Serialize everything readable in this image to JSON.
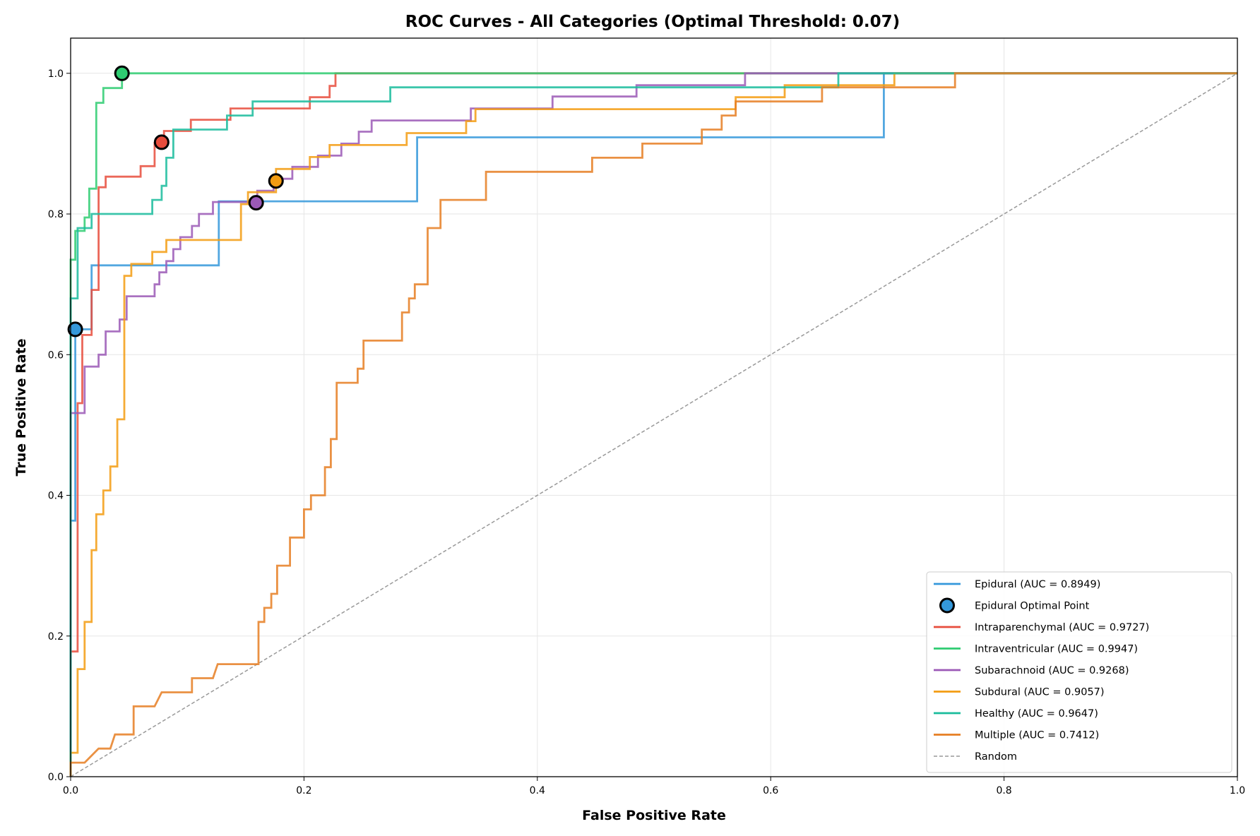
{
  "chart_data": {
    "type": "line",
    "title": "ROC Curves - All Categories (Optimal Threshold: 0.07)",
    "xlabel": "False Positive Rate",
    "ylabel": "True Positive Rate",
    "xlim": [
      0,
      1
    ],
    "ylim": [
      0,
      1.05
    ],
    "x_ticks": [
      "0.0",
      "0.2",
      "0.4",
      "0.6",
      "0.8",
      "1.0"
    ],
    "y_ticks": [
      "0.0",
      "0.2",
      "0.4",
      "0.6",
      "0.8",
      "1.0"
    ],
    "grid": true,
    "legend_position": "lower right",
    "series": [
      {
        "name": "Epidural (AUC = 0.8949)",
        "color": "#3498db",
        "points": [
          [
            0,
            0
          ],
          [
            0,
            0.364
          ],
          [
            0.004,
            0.364
          ],
          [
            0.004,
            0.636
          ],
          [
            0.018,
            0.636
          ],
          [
            0.018,
            0.727
          ],
          [
            0.127,
            0.727
          ],
          [
            0.127,
            0.818
          ],
          [
            0.297,
            0.818
          ],
          [
            0.297,
            0.909
          ],
          [
            0.697,
            0.909
          ],
          [
            0.697,
            1.0
          ],
          [
            1.0,
            1.0
          ]
        ]
      },
      {
        "name": "Intraparenchymal (AUC = 0.9727)",
        "color": "#e74c3c",
        "points": [
          [
            0,
            0
          ],
          [
            0,
            0.178
          ],
          [
            0.006,
            0.178
          ],
          [
            0.006,
            0.531
          ],
          [
            0.01,
            0.531
          ],
          [
            0.01,
            0.628
          ],
          [
            0.018,
            0.628
          ],
          [
            0.018,
            0.692
          ],
          [
            0.024,
            0.692
          ],
          [
            0.024,
            0.838
          ],
          [
            0.03,
            0.838
          ],
          [
            0.03,
            0.853
          ],
          [
            0.06,
            0.853
          ],
          [
            0.06,
            0.868
          ],
          [
            0.072,
            0.868
          ],
          [
            0.072,
            0.901
          ],
          [
            0.08,
            0.901
          ],
          [
            0.08,
            0.918
          ],
          [
            0.103,
            0.918
          ],
          [
            0.103,
            0.934
          ],
          [
            0.137,
            0.934
          ],
          [
            0.137,
            0.95
          ],
          [
            0.205,
            0.95
          ],
          [
            0.205,
            0.966
          ],
          [
            0.222,
            0.966
          ],
          [
            0.222,
            0.982
          ],
          [
            0.227,
            0.982
          ],
          [
            0.227,
            1.0
          ],
          [
            1.0,
            1.0
          ]
        ]
      },
      {
        "name": "Intraventricular (AUC = 0.9947)",
        "color": "#2ecc71",
        "points": [
          [
            0,
            0
          ],
          [
            0,
            0.735
          ],
          [
            0.004,
            0.735
          ],
          [
            0.004,
            0.776
          ],
          [
            0.012,
            0.776
          ],
          [
            0.012,
            0.795
          ],
          [
            0.016,
            0.795
          ],
          [
            0.016,
            0.836
          ],
          [
            0.022,
            0.836
          ],
          [
            0.022,
            0.958
          ],
          [
            0.028,
            0.958
          ],
          [
            0.028,
            0.979
          ],
          [
            0.044,
            0.979
          ],
          [
            0.044,
            1.0
          ],
          [
            1.0,
            1.0
          ]
        ]
      },
      {
        "name": "Subarachnoid (AUC = 0.9268)",
        "color": "#9b59b6",
        "points": [
          [
            0,
            0
          ],
          [
            0,
            0.517
          ],
          [
            0.012,
            0.517
          ],
          [
            0.012,
            0.583
          ],
          [
            0.024,
            0.583
          ],
          [
            0.024,
            0.6
          ],
          [
            0.03,
            0.6
          ],
          [
            0.03,
            0.633
          ],
          [
            0.042,
            0.633
          ],
          [
            0.042,
            0.65
          ],
          [
            0.048,
            0.65
          ],
          [
            0.048,
            0.683
          ],
          [
            0.072,
            0.683
          ],
          [
            0.072,
            0.7
          ],
          [
            0.076,
            0.7
          ],
          [
            0.076,
            0.717
          ],
          [
            0.082,
            0.717
          ],
          [
            0.082,
            0.733
          ],
          [
            0.088,
            0.733
          ],
          [
            0.088,
            0.75
          ],
          [
            0.094,
            0.75
          ],
          [
            0.094,
            0.767
          ],
          [
            0.104,
            0.767
          ],
          [
            0.104,
            0.783
          ],
          [
            0.11,
            0.783
          ],
          [
            0.11,
            0.8
          ],
          [
            0.122,
            0.8
          ],
          [
            0.122,
            0.817
          ],
          [
            0.16,
            0.817
          ],
          [
            0.16,
            0.833
          ],
          [
            0.174,
            0.833
          ],
          [
            0.174,
            0.85
          ],
          [
            0.19,
            0.85
          ],
          [
            0.19,
            0.867
          ],
          [
            0.212,
            0.867
          ],
          [
            0.212,
            0.883
          ],
          [
            0.232,
            0.883
          ],
          [
            0.232,
            0.9
          ],
          [
            0.247,
            0.9
          ],
          [
            0.247,
            0.917
          ],
          [
            0.258,
            0.917
          ],
          [
            0.258,
            0.933
          ],
          [
            0.343,
            0.933
          ],
          [
            0.343,
            0.95
          ],
          [
            0.413,
            0.95
          ],
          [
            0.413,
            0.967
          ],
          [
            0.485,
            0.967
          ],
          [
            0.485,
            0.983
          ],
          [
            0.578,
            0.983
          ],
          [
            0.578,
            1.0
          ],
          [
            1.0,
            1.0
          ]
        ]
      },
      {
        "name": "Subdural (AUC = 0.9057)",
        "color": "#f39c12",
        "points": [
          [
            0,
            0
          ],
          [
            0,
            0.034
          ],
          [
            0.006,
            0.034
          ],
          [
            0.006,
            0.153
          ],
          [
            0.012,
            0.153
          ],
          [
            0.012,
            0.22
          ],
          [
            0.018,
            0.22
          ],
          [
            0.018,
            0.322
          ],
          [
            0.022,
            0.322
          ],
          [
            0.022,
            0.373
          ],
          [
            0.028,
            0.373
          ],
          [
            0.028,
            0.407
          ],
          [
            0.034,
            0.407
          ],
          [
            0.034,
            0.441
          ],
          [
            0.04,
            0.441
          ],
          [
            0.04,
            0.508
          ],
          [
            0.046,
            0.508
          ],
          [
            0.046,
            0.712
          ],
          [
            0.052,
            0.712
          ],
          [
            0.052,
            0.729
          ],
          [
            0.07,
            0.729
          ],
          [
            0.07,
            0.746
          ],
          [
            0.082,
            0.746
          ],
          [
            0.082,
            0.763
          ],
          [
            0.146,
            0.763
          ],
          [
            0.146,
            0.814
          ],
          [
            0.152,
            0.814
          ],
          [
            0.152,
            0.831
          ],
          [
            0.176,
            0.831
          ],
          [
            0.176,
            0.864
          ],
          [
            0.205,
            0.864
          ],
          [
            0.205,
            0.881
          ],
          [
            0.222,
            0.881
          ],
          [
            0.222,
            0.898
          ],
          [
            0.288,
            0.898
          ],
          [
            0.288,
            0.915
          ],
          [
            0.339,
            0.915
          ],
          [
            0.339,
            0.932
          ],
          [
            0.347,
            0.932
          ],
          [
            0.347,
            0.949
          ],
          [
            0.57,
            0.949
          ],
          [
            0.57,
            0.966
          ],
          [
            0.612,
            0.966
          ],
          [
            0.612,
            0.983
          ],
          [
            0.706,
            0.983
          ],
          [
            0.706,
            1.0
          ],
          [
            1.0,
            1.0
          ]
        ]
      },
      {
        "name": "Healthy (AUC = 0.9647)",
        "color": "#1abc9c",
        "points": [
          [
            0,
            0
          ],
          [
            0,
            0.68
          ],
          [
            0.006,
            0.68
          ],
          [
            0.006,
            0.78
          ],
          [
            0.018,
            0.78
          ],
          [
            0.018,
            0.8
          ],
          [
            0.07,
            0.8
          ],
          [
            0.07,
            0.82
          ],
          [
            0.078,
            0.82
          ],
          [
            0.078,
            0.84
          ],
          [
            0.082,
            0.84
          ],
          [
            0.082,
            0.88
          ],
          [
            0.088,
            0.88
          ],
          [
            0.088,
            0.92
          ],
          [
            0.134,
            0.92
          ],
          [
            0.134,
            0.94
          ],
          [
            0.156,
            0.94
          ],
          [
            0.156,
            0.96
          ],
          [
            0.274,
            0.96
          ],
          [
            0.274,
            0.98
          ],
          [
            0.658,
            0.98
          ],
          [
            0.658,
            1.0
          ],
          [
            1.0,
            1.0
          ]
        ]
      },
      {
        "name": "Multiple (AUC = 0.7412)",
        "color": "#e67e22",
        "points": [
          [
            0,
            0
          ],
          [
            0,
            0.02
          ],
          [
            0.012,
            0.02
          ],
          [
            0.024,
            0.04
          ],
          [
            0.034,
            0.04
          ],
          [
            0.038,
            0.06
          ],
          [
            0.054,
            0.06
          ],
          [
            0.054,
            0.1
          ],
          [
            0.072,
            0.1
          ],
          [
            0.078,
            0.12
          ],
          [
            0.104,
            0.12
          ],
          [
            0.104,
            0.14
          ],
          [
            0.122,
            0.14
          ],
          [
            0.126,
            0.16
          ],
          [
            0.161,
            0.16
          ],
          [
            0.161,
            0.22
          ],
          [
            0.166,
            0.22
          ],
          [
            0.166,
            0.24
          ],
          [
            0.172,
            0.24
          ],
          [
            0.172,
            0.26
          ],
          [
            0.177,
            0.26
          ],
          [
            0.177,
            0.3
          ],
          [
            0.188,
            0.3
          ],
          [
            0.188,
            0.34
          ],
          [
            0.2,
            0.34
          ],
          [
            0.2,
            0.38
          ],
          [
            0.206,
            0.38
          ],
          [
            0.206,
            0.4
          ],
          [
            0.218,
            0.4
          ],
          [
            0.218,
            0.44
          ],
          [
            0.223,
            0.44
          ],
          [
            0.223,
            0.48
          ],
          [
            0.228,
            0.48
          ],
          [
            0.228,
            0.56
          ],
          [
            0.246,
            0.56
          ],
          [
            0.246,
            0.58
          ],
          [
            0.251,
            0.58
          ],
          [
            0.251,
            0.62
          ],
          [
            0.284,
            0.62
          ],
          [
            0.284,
            0.66
          ],
          [
            0.29,
            0.66
          ],
          [
            0.29,
            0.68
          ],
          [
            0.295,
            0.68
          ],
          [
            0.295,
            0.7
          ],
          [
            0.306,
            0.7
          ],
          [
            0.306,
            0.78
          ],
          [
            0.317,
            0.78
          ],
          [
            0.317,
            0.82
          ],
          [
            0.356,
            0.82
          ],
          [
            0.356,
            0.86
          ],
          [
            0.447,
            0.86
          ],
          [
            0.447,
            0.88
          ],
          [
            0.49,
            0.88
          ],
          [
            0.49,
            0.9
          ],
          [
            0.541,
            0.9
          ],
          [
            0.541,
            0.92
          ],
          [
            0.558,
            0.92
          ],
          [
            0.558,
            0.94
          ],
          [
            0.57,
            0.94
          ],
          [
            0.57,
            0.96
          ],
          [
            0.644,
            0.96
          ],
          [
            0.644,
            0.98
          ],
          [
            0.758,
            0.98
          ],
          [
            0.758,
            1.0
          ],
          [
            1.0,
            1.0
          ]
        ]
      }
    ],
    "optimal_points": [
      {
        "x": 0.004,
        "y": 0.636,
        "color": "#3498db"
      },
      {
        "x": 0.078,
        "y": 0.902,
        "color": "#e74c3c"
      },
      {
        "x": 0.044,
        "y": 1.0,
        "color": "#2ecc71"
      },
      {
        "x": 0.159,
        "y": 0.816,
        "color": "#9b59b6"
      },
      {
        "x": 0.176,
        "y": 0.847,
        "color": "#f39c12"
      }
    ],
    "random_line": {
      "name": "Random",
      "color": "#999999",
      "points": [
        [
          0,
          0
        ],
        [
          1,
          1
        ]
      ]
    },
    "legend": [
      {
        "type": "line",
        "label": "Epidural (AUC = 0.8949)",
        "color": "#3498db"
      },
      {
        "type": "marker",
        "label": "Epidural Optimal Point",
        "color": "#3498db"
      },
      {
        "type": "line",
        "label": "Intraparenchymal (AUC = 0.9727)",
        "color": "#e74c3c"
      },
      {
        "type": "line",
        "label": "Intraventricular (AUC = 0.9947)",
        "color": "#2ecc71"
      },
      {
        "type": "line",
        "label": "Subarachnoid (AUC = 0.9268)",
        "color": "#9b59b6"
      },
      {
        "type": "line",
        "label": "Subdural (AUC = 0.9057)",
        "color": "#f39c12"
      },
      {
        "type": "line",
        "label": "Healthy (AUC = 0.9647)",
        "color": "#1abc9c"
      },
      {
        "type": "line",
        "label": "Multiple (AUC = 0.7412)",
        "color": "#e67e22"
      },
      {
        "type": "dashed",
        "label": "Random",
        "color": "#999999"
      }
    ]
  }
}
